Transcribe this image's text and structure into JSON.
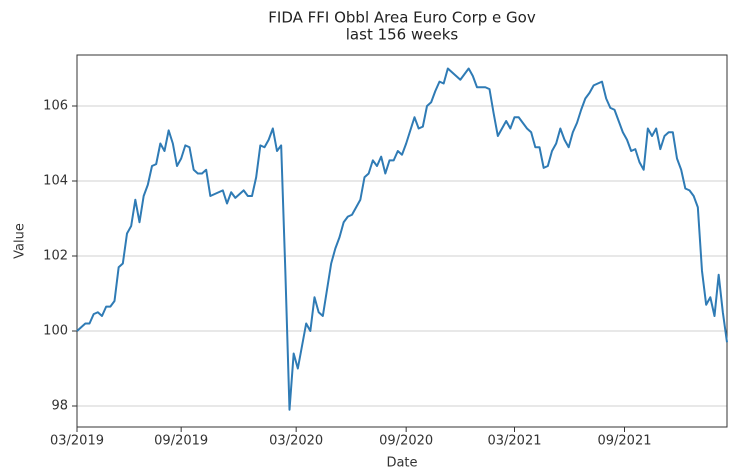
{
  "chart_data": {
    "type": "line",
    "title": "FIDA FFI Obbl Area Euro Corp e Gov",
    "subtitle": "last 156 weeks",
    "x_label": "Date",
    "y_label": "Value",
    "color": "#2f7bb5",
    "grid": true,
    "values": [
      100.0,
      100.1,
      100.2,
      100.2,
      100.45,
      100.5,
      100.4,
      100.65,
      100.65,
      100.8,
      101.7,
      101.8,
      102.6,
      102.8,
      103.5,
      102.9,
      103.6,
      103.9,
      104.4,
      104.45,
      105.0,
      104.8,
      105.35,
      105.0,
      104.4,
      104.6,
      104.95,
      104.9,
      104.3,
      104.2,
      104.2,
      104.3,
      103.6,
      103.65,
      103.7,
      103.75,
      103.4,
      103.7,
      103.55,
      103.65,
      103.75,
      103.6,
      103.6,
      104.1,
      104.95,
      104.9,
      105.1,
      105.4,
      104.8,
      104.95,
      101.6,
      97.9,
      99.4,
      99.0,
      99.6,
      100.2,
      100.0,
      100.9,
      100.5,
      100.4,
      101.1,
      101.8,
      102.2,
      102.5,
      102.9,
      103.05,
      103.1,
      103.3,
      103.5,
      104.1,
      104.2,
      104.55,
      104.4,
      104.65,
      104.2,
      104.55,
      104.55,
      104.8,
      104.7,
      105.0,
      105.35,
      105.7,
      105.4,
      105.45,
      106.0,
      106.1,
      106.4,
      106.65,
      106.6,
      107.0,
      106.9,
      106.8,
      106.7,
      106.85,
      107.0,
      106.8,
      106.5,
      106.5,
      106.5,
      106.45,
      105.8,
      105.2,
      105.4,
      105.6,
      105.4,
      105.7,
      105.7,
      105.55,
      105.4,
      105.3,
      104.9,
      104.9,
      104.35,
      104.4,
      104.8,
      105.0,
      105.4,
      105.1,
      104.9,
      105.3,
      105.55,
      105.9,
      106.2,
      106.35,
      106.55,
      106.6,
      106.65,
      106.2,
      105.95,
      105.9,
      105.6,
      105.3,
      105.1,
      104.8,
      104.85,
      104.5,
      104.3,
      105.4,
      105.2,
      105.4,
      104.85,
      105.2,
      105.3,
      105.3,
      104.6,
      104.3,
      103.8,
      103.75,
      103.6,
      103.3,
      101.6,
      100.7,
      100.9,
      100.4,
      101.5,
      100.5,
      99.7
    ],
    "xlim": [
      0,
      156
    ],
    "xticks": [
      {
        "value": 0,
        "label": "03/2019"
      },
      {
        "value": 25,
        "label": "09/2019"
      },
      {
        "value": 52.6,
        "label": "03/2020"
      },
      {
        "value": 79,
        "label": "09/2020"
      },
      {
        "value": 105,
        "label": "03/2021"
      },
      {
        "value": 131.4,
        "label": "09/2021"
      }
    ],
    "ylim": [
      97.44,
      107.36
    ],
    "yticks": [
      98,
      100,
      102,
      104,
      106
    ]
  }
}
